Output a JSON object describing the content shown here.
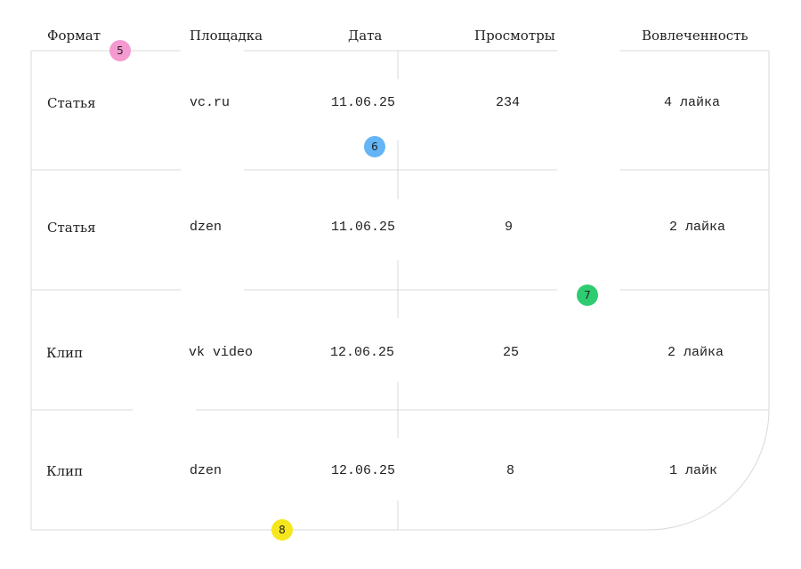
{
  "headers": [
    "Формат",
    "Площадка",
    "Дата",
    "Просмотры",
    "Вовлеченность"
  ],
  "rows": [
    {
      "format": "Статья",
      "platform": "vc.ru",
      "date": "11.06.25",
      "views": "234",
      "engagement": "4 лайка"
    },
    {
      "format": "Статья",
      "platform": "dzen",
      "date": "11.06.25",
      "views": "9",
      "engagement": "2 лайка"
    },
    {
      "format": "Клип",
      "platform": "vk video",
      "date": "12.06.25",
      "views": "25",
      "engagement": "2 лайка"
    },
    {
      "format": "Клип",
      "platform": "dzen",
      "date": "12.06.25",
      "views": "8",
      "engagement": "1 лайк"
    }
  ],
  "markers": [
    {
      "label": "5",
      "color": "#f49ad1"
    },
    {
      "label": "6",
      "color": "#64b5f6"
    },
    {
      "label": "7",
      "color": "#2ecc71"
    },
    {
      "label": "8",
      "color": "#f5e61d"
    }
  ],
  "colors": {
    "grid": "#d9d9d9",
    "text": "#1f1f1f"
  }
}
